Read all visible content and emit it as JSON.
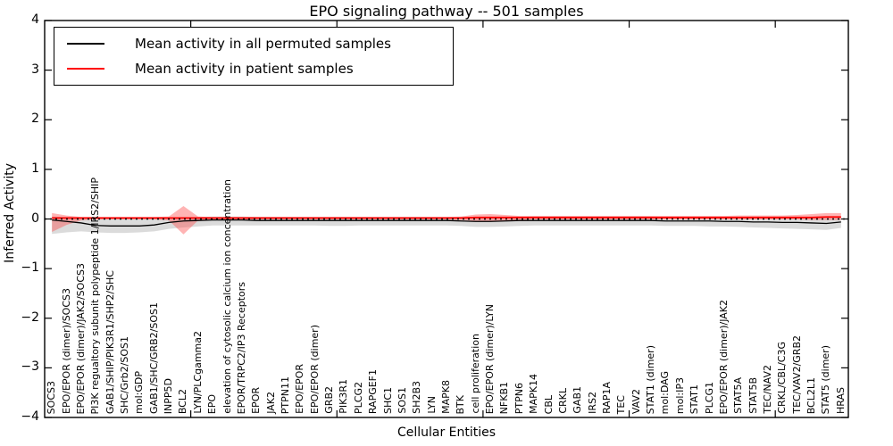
{
  "title": "EPO signaling pathway -- 501 samples",
  "axes": {
    "x_label": "Cellular Entities",
    "y_label": "Inferred Activity",
    "y_ticks": [
      4,
      3,
      2,
      1,
      0,
      -1,
      -2,
      -3,
      -4
    ],
    "y_tick_labels": [
      "4",
      "3",
      "2",
      "1",
      "0",
      "−1",
      "−2",
      "−3",
      "−4"
    ],
    "x_tick_positions": [
      10,
      20,
      30,
      40,
      50
    ]
  },
  "legend": {
    "items": [
      {
        "label": "Mean activity in all permuted samples",
        "color": "#000000"
      },
      {
        "label": "Mean activity in patient samples",
        "color": "#ff0000"
      }
    ]
  },
  "chart_data": {
    "type": "line",
    "title": "EPO signaling pathway -- 501 samples",
    "xlabel": "Cellular Entities",
    "ylabel": "Inferred Activity",
    "ylim": [
      -4,
      4
    ],
    "grid": false,
    "legend_position": "upper left",
    "categories": [
      "SOCS3",
      "EPO/EPOR (dimer)/SOCS3",
      "EPO/EPOR (dimer)/JAK2/SOCS3",
      "PI3K regualtory subunit polypeptide 1/IRS2/SHIP",
      "GAB1/SHIP/PIK3R1/SHP2/SHC",
      "SHC/Grb2/SOS1",
      "mol:GDP",
      "GAB1/SHC/GRB2/SOS1",
      "INPP5D",
      "BCL2",
      "LYN/PLCgamma2",
      "EPO",
      "elevation of cytosolic calcium ion concentration",
      "EPOR/TRPC2/IP3 Receptors",
      "EPOR",
      "JAK2",
      "PTPN11",
      "EPO/EPOR",
      "EPO/EPOR (dimer)",
      "GRB2",
      "PIK3R1",
      "PLCG2",
      "RAPGEF1",
      "SHC1",
      "SOS1",
      "SH2B3",
      "LYN",
      "MAPK8",
      "BTK",
      "cell proliferation",
      "EPO/EPOR (dimer)/LYN",
      "NFKB1",
      "PTPN6",
      "MAPK14",
      "CBL",
      "CRKL",
      "GAB1",
      "IRS2",
      "RAP1A",
      "TEC",
      "VAV2",
      "STAT1 (dimer)",
      "mol:DAG",
      "mol:IP3",
      "STAT1",
      "PLCG1",
      "EPO/EPOR (dimer)/JAK2",
      "STAT5A",
      "STAT5B",
      "TEC/NAV2",
      "CRKL/CBL/C3G",
      "TEC/VAV2/GRB2",
      "BCL2L1",
      "STAT5 (dimer)",
      "HRAS"
    ],
    "series": [
      {
        "name": "Mean activity in all permuted samples",
        "color": "#000000",
        "style": "solid",
        "values": [
          -0.02,
          -0.05,
          -0.08,
          -0.13,
          -0.14,
          -0.14,
          -0.14,
          -0.12,
          -0.07,
          -0.04,
          -0.03,
          -0.02,
          -0.02,
          -0.02,
          -0.03,
          -0.03,
          -0.03,
          -0.03,
          -0.03,
          -0.03,
          -0.03,
          -0.03,
          -0.03,
          -0.03,
          -0.03,
          -0.03,
          -0.03,
          -0.03,
          -0.04,
          -0.05,
          -0.05,
          -0.04,
          -0.03,
          -0.03,
          -0.03,
          -0.03,
          -0.03,
          -0.03,
          -0.03,
          -0.03,
          -0.03,
          -0.03,
          -0.04,
          -0.04,
          -0.04,
          -0.04,
          -0.05,
          -0.05,
          -0.06,
          -0.06,
          -0.07,
          -0.07,
          -0.08,
          -0.09,
          -0.06
        ],
        "band": {
          "upper": [
            0.05,
            0.04,
            0.03,
            0.02,
            0.02,
            0.02,
            0.02,
            0.02,
            0.03,
            0.04,
            0.04,
            0.05,
            0.05,
            0.05,
            0.04,
            0.04,
            0.04,
            0.04,
            0.04,
            0.04,
            0.04,
            0.04,
            0.04,
            0.04,
            0.04,
            0.04,
            0.04,
            0.04,
            0.04,
            0.03,
            0.03,
            0.04,
            0.04,
            0.05,
            0.05,
            0.05,
            0.05,
            0.05,
            0.05,
            0.05,
            0.05,
            0.05,
            0.04,
            0.04,
            0.04,
            0.04,
            0.04,
            0.03,
            0.03,
            0.03,
            0.02,
            0.02,
            0.02,
            0.02,
            0.03
          ],
          "lower": [
            -0.3,
            -0.27,
            -0.25,
            -0.27,
            -0.28,
            -0.28,
            -0.27,
            -0.25,
            -0.2,
            -0.17,
            -0.15,
            -0.13,
            -0.13,
            -0.13,
            -0.13,
            -0.13,
            -0.13,
            -0.13,
            -0.13,
            -0.14,
            -0.14,
            -0.13,
            -0.13,
            -0.13,
            -0.13,
            -0.13,
            -0.13,
            -0.13,
            -0.14,
            -0.16,
            -0.16,
            -0.15,
            -0.14,
            -0.13,
            -0.13,
            -0.13,
            -0.13,
            -0.13,
            -0.13,
            -0.13,
            -0.13,
            -0.13,
            -0.14,
            -0.14,
            -0.14,
            -0.15,
            -0.15,
            -0.16,
            -0.17,
            -0.18,
            -0.19,
            -0.2,
            -0.21,
            -0.22,
            -0.18
          ],
          "color": "#999999",
          "opacity": 0.35
        }
      },
      {
        "name": "Mean activity in patient samples",
        "color": "#ff0000",
        "style": "solid",
        "values": [
          0.02,
          0.02,
          0.02,
          0.02,
          0.02,
          0.02,
          0.02,
          0.02,
          0.02,
          0.02,
          0.02,
          0.02,
          0.02,
          0.02,
          0.02,
          0.02,
          0.02,
          0.02,
          0.02,
          0.02,
          0.02,
          0.02,
          0.02,
          0.02,
          0.02,
          0.02,
          0.02,
          0.02,
          0.02,
          0.03,
          0.03,
          0.03,
          0.03,
          0.03,
          0.03,
          0.03,
          0.03,
          0.03,
          0.03,
          0.03,
          0.03,
          0.03,
          0.03,
          0.03,
          0.03,
          0.03,
          0.03,
          0.03,
          0.03,
          0.03,
          0.03,
          0.03,
          0.03,
          0.04,
          0.04
        ],
        "band": {
          "upper": [
            0.12,
            0.07,
            0.04,
            0.04,
            0.04,
            0.04,
            0.04,
            0.04,
            0.05,
            0.26,
            0.05,
            0.04,
            0.04,
            0.04,
            0.04,
            0.04,
            0.04,
            0.04,
            0.04,
            0.04,
            0.04,
            0.04,
            0.04,
            0.04,
            0.04,
            0.04,
            0.04,
            0.04,
            0.05,
            0.09,
            0.1,
            0.08,
            0.06,
            0.06,
            0.06,
            0.06,
            0.06,
            0.06,
            0.06,
            0.06,
            0.06,
            0.06,
            0.06,
            0.06,
            0.06,
            0.06,
            0.06,
            0.07,
            0.07,
            0.07,
            0.07,
            0.08,
            0.1,
            0.12,
            0.12
          ],
          "lower": [
            -0.26,
            -0.12,
            -0.03,
            -0.01,
            -0.01,
            -0.01,
            -0.01,
            -0.01,
            -0.03,
            -0.31,
            -0.03,
            -0.01,
            -0.01,
            -0.01,
            -0.01,
            -0.01,
            -0.01,
            -0.01,
            -0.01,
            -0.01,
            -0.01,
            -0.01,
            -0.01,
            -0.01,
            -0.01,
            -0.01,
            -0.01,
            -0.01,
            -0.02,
            -0.04,
            -0.05,
            -0.04,
            -0.02,
            -0.01,
            -0.01,
            -0.01,
            -0.01,
            -0.01,
            -0.01,
            -0.01,
            -0.01,
            -0.01,
            -0.01,
            -0.01,
            -0.01,
            -0.01,
            -0.01,
            -0.01,
            -0.01,
            -0.01,
            -0.01,
            -0.01,
            -0.02,
            -0.02,
            -0.02
          ],
          "color": "#ff4444",
          "opacity": 0.4
        }
      }
    ],
    "reference_line": {
      "y": 0,
      "style": "dotted",
      "color": "#000000"
    }
  }
}
